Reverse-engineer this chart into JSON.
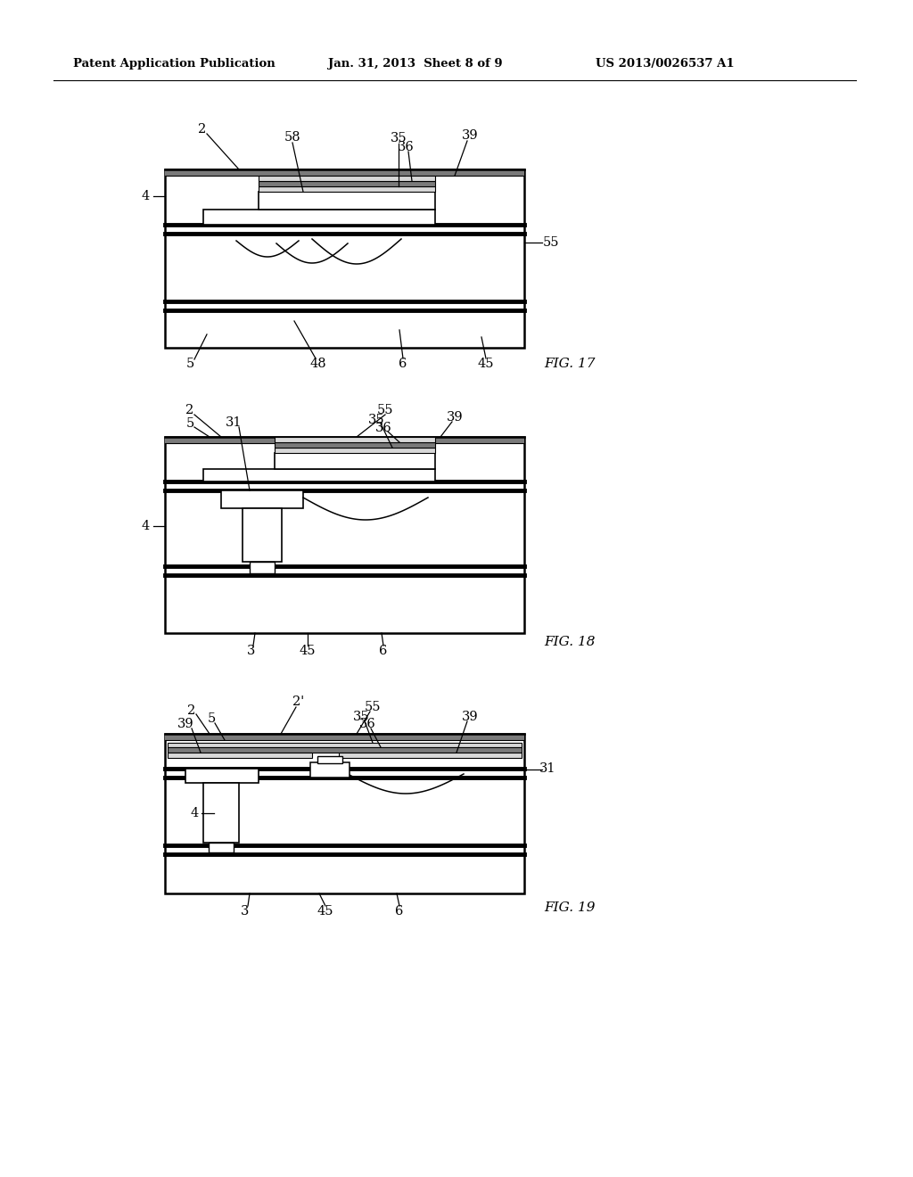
{
  "bg": "#ffffff",
  "lc": "#000000",
  "header_left": "Patent Application Publication",
  "header_mid": "Jan. 31, 2013  Sheet 8 of 9",
  "header_right": "US 2013/0026537 A1",
  "fig17": "FIG. 17",
  "fig18": "FIG. 18",
  "fig19": "FIG. 19",
  "gray_dark": "#7a7a7a",
  "gray_med": "#b0b0b0",
  "gray_light": "#d8d8d8"
}
